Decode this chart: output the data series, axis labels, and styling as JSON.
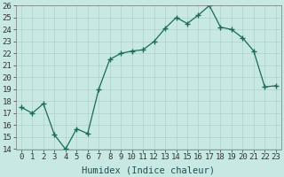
{
  "x": [
    0,
    1,
    2,
    3,
    4,
    5,
    6,
    7,
    8,
    9,
    10,
    11,
    12,
    13,
    14,
    15,
    16,
    17,
    18,
    19,
    20,
    21,
    22,
    23
  ],
  "y": [
    17.5,
    17.0,
    17.8,
    15.2,
    14.0,
    15.7,
    15.3,
    19.0,
    21.5,
    22.0,
    22.2,
    22.3,
    23.0,
    24.1,
    25.0,
    24.5,
    25.2,
    26.0,
    24.2,
    24.0,
    23.3,
    22.2,
    19.2,
    19.3
  ],
  "line_color": "#1a6b5a",
  "marker": "+",
  "marker_size": 4,
  "marker_lw": 1.0,
  "bg_color": "#c8e8e4",
  "grid_color": "#b0d0cc",
  "xlabel": "Humidex (Indice chaleur)",
  "ylim": [
    14,
    26
  ],
  "xlim": [
    -0.5,
    23.5
  ],
  "yticks": [
    14,
    15,
    16,
    17,
    18,
    19,
    20,
    21,
    22,
    23,
    24,
    25,
    26
  ],
  "xticks": [
    0,
    1,
    2,
    3,
    4,
    5,
    6,
    7,
    8,
    9,
    10,
    11,
    12,
    13,
    14,
    15,
    16,
    17,
    18,
    19,
    20,
    21,
    22,
    23
  ],
  "tick_fontsize": 6.5,
  "xlabel_fontsize": 7.5
}
